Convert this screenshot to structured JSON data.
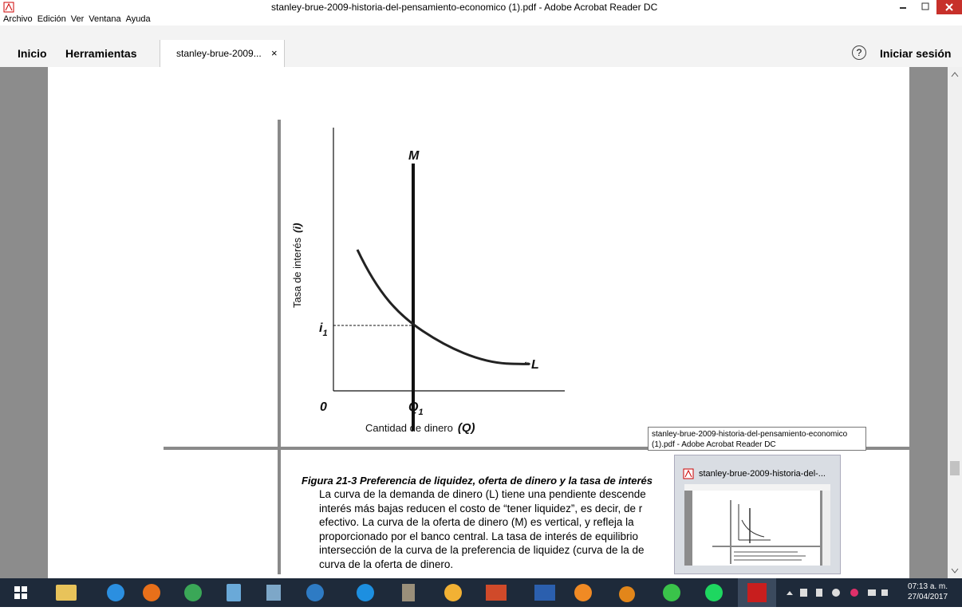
{
  "window": {
    "title": "stanley-brue-2009-historia-del-pensamiento-economico (1).pdf - Adobe Acrobat Reader DC"
  },
  "menu": [
    "Archivo",
    "Edición",
    "Ver",
    "Ventana",
    "Ayuda"
  ],
  "toolbar": {
    "home": "Inicio",
    "tools": "Herramientas",
    "tab": "stanley-brue-2009...",
    "tab_close": "×",
    "help": "?",
    "sign_in": "Iniciar sesión"
  },
  "figure": {
    "curve_m": "M",
    "curve_l": "L",
    "y_axis_label": "Tasa de interés",
    "y_axis_symbol": "(i)",
    "origin": "0",
    "i1": {
      "base": "i",
      "sub": "1"
    },
    "q1": {
      "base": "Q",
      "sub": "1"
    },
    "x_axis_label": "Cantidad de dinero",
    "x_axis_symbol": "(Q)"
  },
  "caption": {
    "title": "Figura 21-3 Preferencia de liquidez, oferta de dinero y la tasa de interés",
    "lines": [
      "La curva de la demanda de dinero (L) tiene una pendiente descende",
      "interés más bajas reducen el costo de “tener liquidez”, es decir, de r",
      "efectivo. La curva de la oferta de dinero (M) es vertical, y refleja la",
      "proporcionado por el banco central. La tasa de interés de equilibrio",
      "intersección de la curva de la preferencia de liquidez (curva de la de",
      "curva de la oferta de dinero."
    ]
  },
  "tooltip": {
    "lines": [
      "stanley-brue-2009-historia-del-pensamiento-economico",
      "(1).pdf - Adobe Acrobat Reader DC"
    ]
  },
  "thumbnail": {
    "title": "stanley-brue-2009-historia-del-..."
  },
  "clock": {
    "time": "07:13 a. m.",
    "date": "27/04/2017"
  }
}
